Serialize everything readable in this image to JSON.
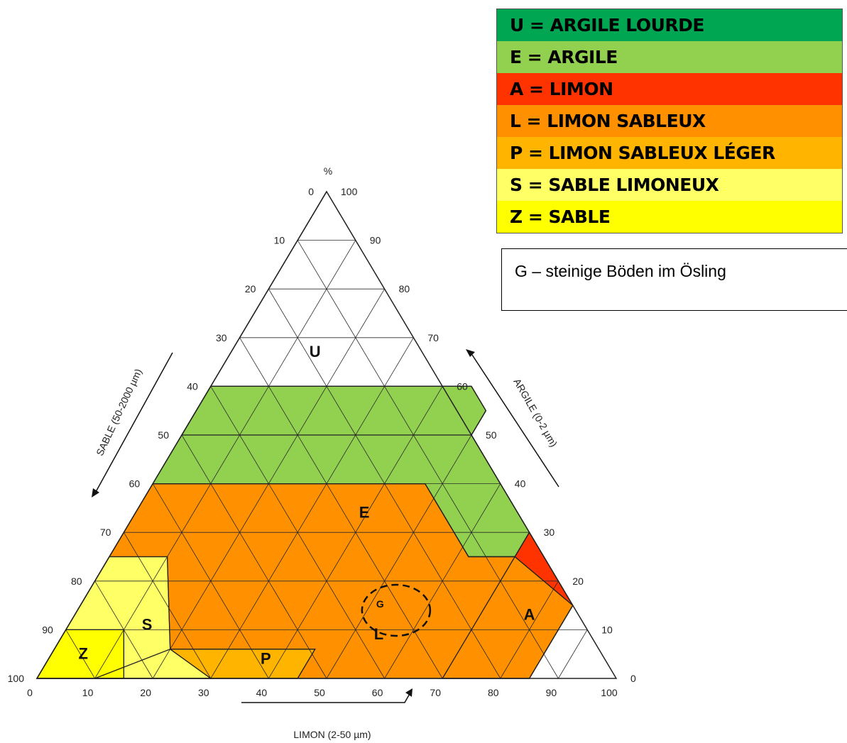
{
  "legend": [
    {
      "code": "U",
      "label": "U = ARGILE LOURDE",
      "color": "#00a651"
    },
    {
      "code": "E",
      "label": "E = ARGILE",
      "color": "#92d050"
    },
    {
      "code": "A",
      "label": "A = LIMON",
      "color": "#ff3300"
    },
    {
      "code": "L",
      "label": "L = LIMON SABLEUX",
      "color": "#ff9000"
    },
    {
      "code": "P",
      "label": "P = LIMON SABLEUX LÉGER",
      "color": "#ffb400"
    },
    {
      "code": "S",
      "label": "S = SABLE LIMONEUX",
      "color": "#ffff66"
    },
    {
      "code": "Z",
      "label": "Z = SABLE",
      "color": "#ffff00"
    }
  ],
  "note": "G – steinige Böden im Ösling",
  "percent_label": "%",
  "axes": {
    "sand": {
      "label": "SABLE (50-2000 µm)",
      "ticks": [
        0,
        10,
        20,
        30,
        40,
        50,
        60,
        70,
        80,
        90,
        100
      ]
    },
    "clay": {
      "label": "ARGILE (0-2 µm)",
      "ticks": [
        100,
        90,
        80,
        70,
        60,
        50,
        40,
        30,
        20,
        10,
        0
      ]
    },
    "silt": {
      "label": "LIMON (2-50 µm)",
      "ticks": [
        0,
        10,
        20,
        30,
        40,
        50,
        60,
        70,
        80,
        90,
        100
      ]
    }
  },
  "regions": [
    {
      "code": "U",
      "label": "U",
      "color": "#00a651",
      "points": [
        [
          0,
          100
        ],
        [
          0,
          60
        ],
        [
          45,
          60
        ],
        [
          50,
          55
        ],
        [
          50,
          50
        ],
        [
          0,
          50
        ]
      ]
    },
    {
      "code": "E",
      "label": "E",
      "color": "#92d050",
      "points": [
        [
          0,
          60
        ],
        [
          0,
          40
        ],
        [
          47,
          40
        ],
        [
          62,
          25
        ],
        [
          70,
          25
        ],
        [
          70,
          30
        ],
        [
          50,
          50
        ],
        [
          50,
          55
        ],
        [
          45,
          60
        ]
      ]
    },
    {
      "code": "A",
      "label": "A",
      "color": "#ff3300",
      "points": [
        [
          70,
          30
        ],
        [
          70,
          0
        ],
        [
          85,
          0
        ],
        [
          85,
          15
        ]
      ]
    },
    {
      "code": "L",
      "label": "L",
      "color": "#ff9000",
      "points": [
        [
          0,
          40
        ],
        [
          0,
          25
        ],
        [
          0,
          0
        ],
        [
          85,
          0
        ],
        [
          85,
          15
        ],
        [
          70,
          25
        ],
        [
          62,
          25
        ],
        [
          47,
          40
        ]
      ]
    },
    {
      "code": "P",
      "label": "P",
      "color": "#ffb400",
      "points": [
        [
          10,
          0
        ],
        [
          28,
          0
        ],
        [
          38,
          0
        ],
        [
          45,
          0
        ],
        [
          45,
          6
        ],
        [
          30,
          6
        ],
        [
          20,
          6
        ]
      ]
    },
    {
      "code": "S",
      "label": "S",
      "color": "#ffff66",
      "points": [
        [
          0,
          25
        ],
        [
          0,
          0
        ],
        [
          30,
          0
        ],
        [
          20,
          6
        ],
        [
          10,
          25
        ]
      ]
    },
    {
      "code": "Z",
      "label": "Z",
      "color": "#ffff00",
      "points": [
        [
          0,
          10
        ],
        [
          0,
          0
        ],
        [
          15,
          0
        ],
        [
          10,
          10
        ]
      ]
    }
  ],
  "stony_marker": {
    "label": "G",
    "silt": 55,
    "clay": 14
  }
}
